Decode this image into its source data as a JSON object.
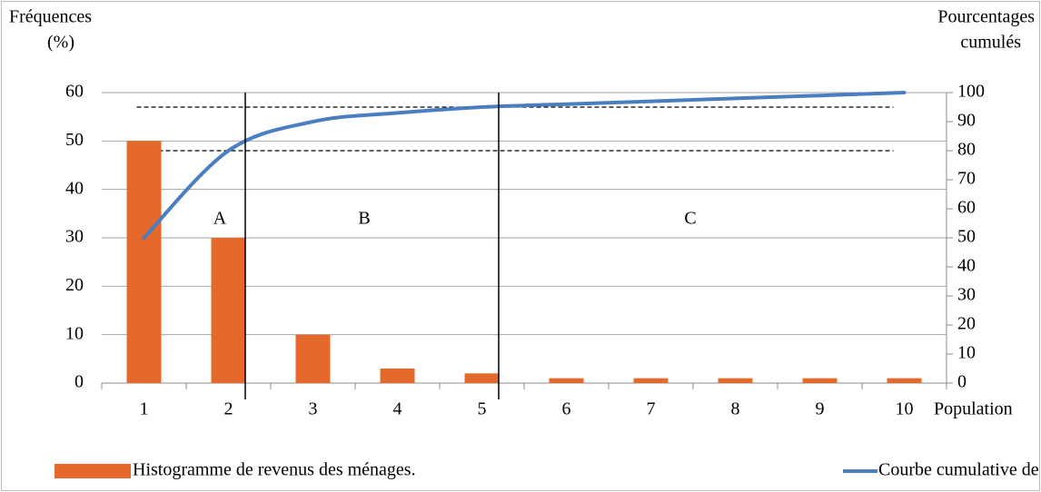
{
  "chart_data": {
    "type": "pareto",
    "y_label": [
      "Fréquences",
      "(%)"
    ],
    "y2_label": [
      "Pourcentages",
      "cumulés"
    ],
    "x_label": "Population",
    "categories": [
      "1",
      "2",
      "3",
      "4",
      "5",
      "6",
      "7",
      "8",
      "9",
      "10"
    ],
    "series": [
      {
        "name": "Histogramme de revenus des ménages.",
        "type": "bar",
        "color": "#e4692a",
        "values": [
          50,
          30,
          10,
          3,
          2,
          1,
          1,
          1,
          1,
          1
        ]
      },
      {
        "name": "Courbe cumulative de revenus des ménages.",
        "type": "line",
        "axis": "y2",
        "color": "#4a7ec0",
        "values": [
          50,
          80,
          90,
          93,
          95,
          96,
          97,
          98,
          99,
          100
        ]
      }
    ],
    "ylim": [
      0,
      60
    ],
    "yticks": [
      0,
      10,
      20,
      30,
      40,
      50,
      60
    ],
    "y2lim": [
      0,
      100
    ],
    "y2ticks": [
      0,
      10,
      20,
      30,
      40,
      50,
      60,
      70,
      80,
      90,
      100
    ],
    "y2_reference_lines": [
      80,
      95
    ],
    "annotations": [
      "A",
      "B",
      "C"
    ],
    "grid": true,
    "legend": "bottom"
  }
}
